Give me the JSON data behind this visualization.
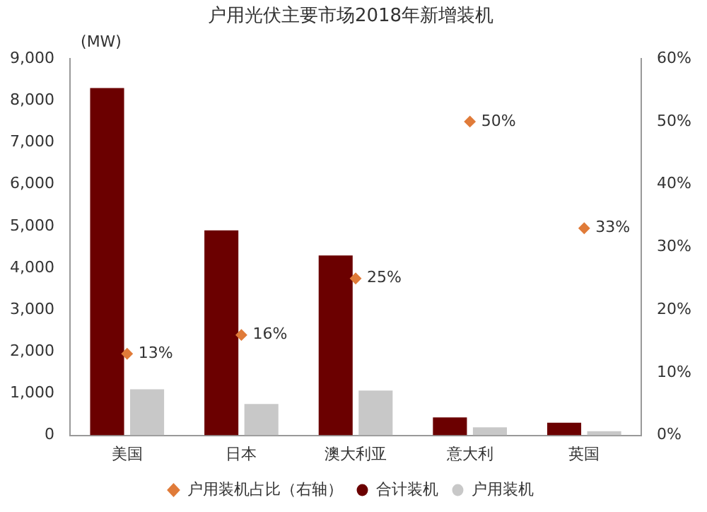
{
  "chart_data": {
    "type": "bar",
    "title": "户用光伏主要市场2018年新增装机",
    "ylabel": "(MW)",
    "categories": [
      "美国",
      "日本",
      "澳大利亚",
      "意大利",
      "英国"
    ],
    "series": [
      {
        "name": "合计装机",
        "color": "#6b0000",
        "values": [
          8300,
          4900,
          4300,
          430,
          300
        ]
      },
      {
        "name": "户用装机",
        "color": "#c8c8c8",
        "values": [
          1100,
          750,
          1070,
          190,
          100
        ]
      },
      {
        "name": "户用装机占比（右轴）",
        "type": "scatter",
        "axis": "y2",
        "color": "#e07b39",
        "x": [
          "美国",
          "日本",
          "澳大利亚",
          "意大利",
          "英国"
        ],
        "values": [
          13,
          16,
          25,
          50,
          33
        ],
        "value_labels": [
          "13%",
          "16%",
          "25%",
          "50%",
          "33%"
        ]
      }
    ],
    "ylim": [
      0,
      9000
    ],
    "yticks": [
      0,
      {
        "value": 1000,
        "label": "1,000"
      },
      {
        "value": 2000,
        "label": "2,000"
      },
      {
        "value": 3000,
        "label": "3,000"
      },
      {
        "value": 4000,
        "label": "4,000"
      },
      {
        "value": 5000,
        "label": "5,000"
      },
      {
        "value": 6000,
        "label": "6,000"
      },
      {
        "value": 7000,
        "label": "7,000"
      },
      {
        "value": 8000,
        "label": "8,000"
      },
      {
        "value": 9000,
        "label": "9,000"
      }
    ],
    "y2lim": [
      0,
      60
    ],
    "y2ticks": [
      {
        "value": 0,
        "label": "0%"
      },
      {
        "value": 10,
        "label": "10%"
      },
      {
        "value": 20,
        "label": "20%"
      },
      {
        "value": 30,
        "label": "30%"
      },
      {
        "value": 40,
        "label": "40%"
      },
      {
        "value": 50,
        "label": "50%"
      },
      {
        "value": 60,
        "label": "60%"
      }
    ],
    "grid": false,
    "legend": "bottom",
    "marker": "diamond"
  }
}
